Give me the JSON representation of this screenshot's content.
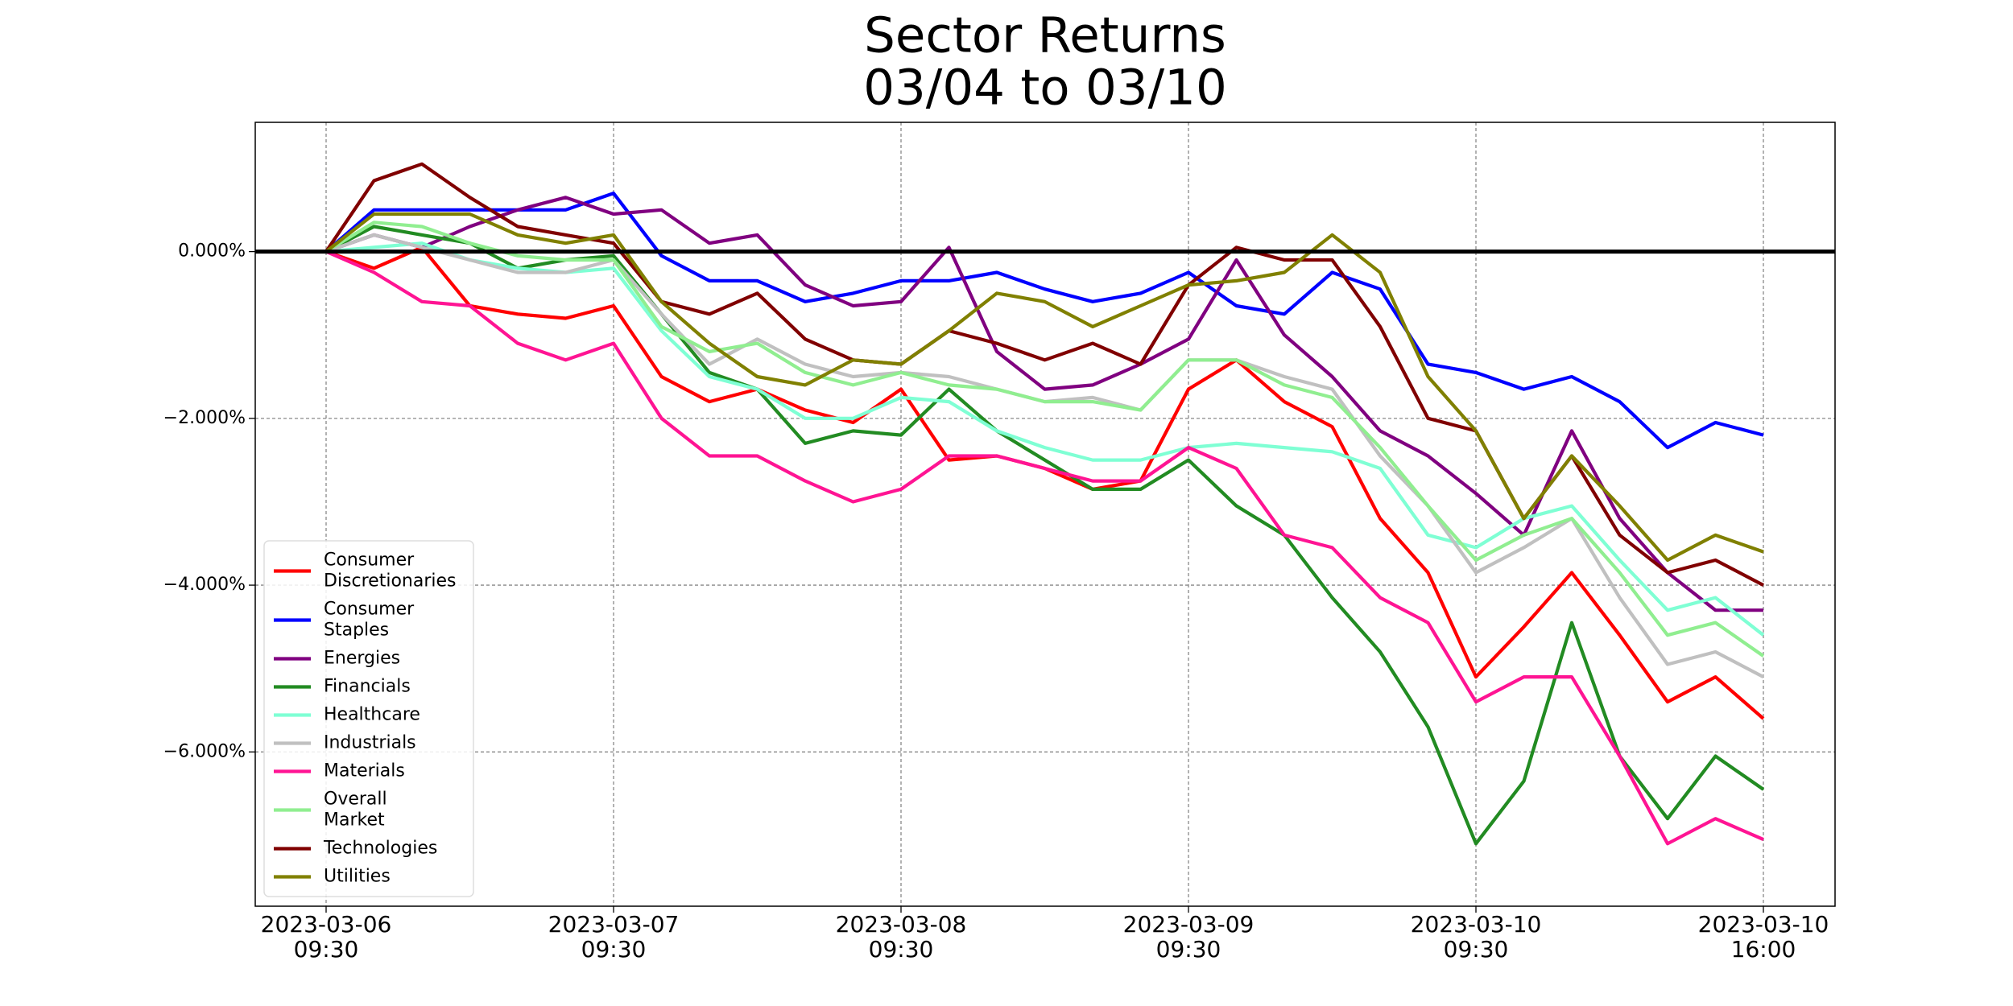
{
  "chart_data": {
    "type": "line",
    "title": "Sector Returns",
    "subtitle": "03/04 to 03/10",
    "x": [
      "2023-03-06 09:30",
      "2023-03-06 10:35",
      "2023-03-06 11:40",
      "2023-03-06 12:45",
      "2023-03-06 13:50",
      "2023-03-06 14:55",
      "2023-03-07 09:30",
      "2023-03-07 10:35",
      "2023-03-07 11:40",
      "2023-03-07 12:45",
      "2023-03-07 13:50",
      "2023-03-07 14:55",
      "2023-03-08 09:30",
      "2023-03-08 10:35",
      "2023-03-08 11:40",
      "2023-03-08 12:45",
      "2023-03-08 13:50",
      "2023-03-08 14:55",
      "2023-03-09 09:30",
      "2023-03-09 10:35",
      "2023-03-09 11:40",
      "2023-03-09 12:45",
      "2023-03-09 13:50",
      "2023-03-09 14:55",
      "2023-03-10 09:30",
      "2023-03-10 10:35",
      "2023-03-10 11:40",
      "2023-03-10 12:45",
      "2023-03-10 13:50",
      "2023-03-10 14:55",
      "2023-03-10 16:00"
    ],
    "xticks": [
      "2023-03-06 09:30",
      "2023-03-07 09:30",
      "2023-03-08 09:30",
      "2023-03-09 09:30",
      "2023-03-10 09:30",
      "2023-03-10 16:00"
    ],
    "ylim": [
      -7.85,
      1.55
    ],
    "yticks": [
      {
        "value": 0,
        "label": "0.000%"
      },
      {
        "value": -2,
        "label": "−2.000%"
      },
      {
        "value": -4,
        "label": "−4.000%"
      },
      {
        "value": -6,
        "label": "−6.000%"
      }
    ],
    "hline": 0,
    "grid": true,
    "legend": "lower left",
    "series": [
      {
        "name": "Consumer Discretionaries",
        "color": "#ff0000",
        "values": [
          0,
          -0.2,
          0.05,
          -0.65,
          -0.75,
          -0.8,
          -0.65,
          -1.5,
          -1.8,
          -1.65,
          -1.9,
          -2.05,
          -1.65,
          -2.5,
          -2.45,
          -2.6,
          -2.85,
          -2.75,
          -1.65,
          -1.3,
          -1.8,
          -2.1,
          -3.2,
          -3.85,
          -5.1,
          -4.5,
          -3.85,
          -4.6,
          -5.4,
          -5.1,
          -5.6
        ]
      },
      {
        "name": "Consumer Staples",
        "color": "#0000ff",
        "values": [
          0,
          0.5,
          0.5,
          0.5,
          0.5,
          0.5,
          0.7,
          -0.05,
          -0.35,
          -0.35,
          -0.6,
          -0.5,
          -0.35,
          -0.35,
          -0.25,
          -0.45,
          -0.6,
          -0.5,
          -0.25,
          -0.65,
          -0.75,
          -0.25,
          -0.45,
          -1.35,
          -1.45,
          -1.65,
          -1.5,
          -1.8,
          -2.35,
          -2.05,
          -2.2
        ]
      },
      {
        "name": "Energies",
        "color": "#800080",
        "values": [
          0,
          0.2,
          0.05,
          0.3,
          0.5,
          0.65,
          0.45,
          0.5,
          0.1,
          0.2,
          -0.4,
          -0.65,
          -0.6,
          0.05,
          -1.2,
          -1.65,
          -1.6,
          -1.35,
          -1.05,
          -0.1,
          -1.0,
          -1.5,
          -2.15,
          -2.45,
          -2.9,
          -3.4,
          -2.15,
          -3.2,
          -3.85,
          -4.3,
          -4.3
        ]
      },
      {
        "name": "Financials",
        "color": "#228b22",
        "values": [
          0,
          0.3,
          0.2,
          0.1,
          -0.2,
          -0.1,
          -0.05,
          -0.75,
          -1.45,
          -1.65,
          -2.3,
          -2.15,
          -2.2,
          -1.65,
          -2.15,
          -2.5,
          -2.85,
          -2.85,
          -2.5,
          -3.05,
          -3.4,
          -4.15,
          -4.8,
          -5.7,
          -7.1,
          -6.35,
          -4.45,
          -6.05,
          -6.8,
          -6.05,
          -6.45
        ]
      },
      {
        "name": "Healthcare",
        "color": "#7fffd4",
        "values": [
          0,
          0.05,
          0.1,
          -0.1,
          -0.2,
          -0.25,
          -0.2,
          -0.95,
          -1.5,
          -1.65,
          -2.0,
          -2.0,
          -1.75,
          -1.8,
          -2.15,
          -2.35,
          -2.5,
          -2.5,
          -2.35,
          -2.3,
          -2.35,
          -2.4,
          -2.6,
          -3.4,
          -3.55,
          -3.2,
          -3.05,
          -3.7,
          -4.3,
          -4.15,
          -4.6
        ]
      },
      {
        "name": "Industrials",
        "color": "#c0c0c0",
        "values": [
          0,
          0.2,
          0.05,
          -0.1,
          -0.25,
          -0.25,
          -0.1,
          -0.75,
          -1.35,
          -1.05,
          -1.35,
          -1.5,
          -1.45,
          -1.5,
          -1.65,
          -1.8,
          -1.75,
          -1.9,
          -1.3,
          -1.3,
          -1.5,
          -1.65,
          -2.45,
          -3.05,
          -3.85,
          -3.55,
          -3.2,
          -4.15,
          -4.95,
          -4.8,
          -5.1
        ]
      },
      {
        "name": "Materials",
        "color": "#ff1493",
        "values": [
          0,
          -0.25,
          -0.6,
          -0.65,
          -1.1,
          -1.3,
          -1.1,
          -2.0,
          -2.45,
          -2.45,
          -2.75,
          -3.0,
          -2.85,
          -2.45,
          -2.45,
          -2.6,
          -2.75,
          -2.75,
          -2.35,
          -2.6,
          -3.4,
          -3.55,
          -4.15,
          -4.45,
          -5.4,
          -5.1,
          -5.1,
          -6.05,
          -7.1,
          -6.8,
          -7.05
        ]
      },
      {
        "name": "Overall Market",
        "color": "#90ee90",
        "values": [
          0,
          0.35,
          0.3,
          0.1,
          -0.05,
          -0.1,
          -0.1,
          -0.9,
          -1.2,
          -1.1,
          -1.45,
          -1.6,
          -1.45,
          -1.6,
          -1.65,
          -1.8,
          -1.8,
          -1.9,
          -1.3,
          -1.3,
          -1.6,
          -1.75,
          -2.35,
          -3.05,
          -3.7,
          -3.4,
          -3.2,
          -3.85,
          -4.6,
          -4.45,
          -4.85
        ]
      },
      {
        "name": "Technologies",
        "color": "#800000",
        "values": [
          0,
          0.85,
          1.05,
          0.65,
          0.3,
          0.2,
          0.1,
          -0.6,
          -0.75,
          -0.5,
          -1.05,
          -1.3,
          -1.35,
          -0.95,
          -1.1,
          -1.3,
          -1.1,
          -1.35,
          -0.4,
          0.05,
          -0.1,
          -0.1,
          -0.9,
          -2.0,
          -2.15,
          -3.2,
          -2.45,
          -3.4,
          -3.85,
          -3.7,
          -4.0
        ]
      },
      {
        "name": "Utilities",
        "color": "#808000",
        "values": [
          0,
          0.45,
          0.45,
          0.45,
          0.2,
          0.1,
          0.2,
          -0.6,
          -1.1,
          -1.5,
          -1.6,
          -1.3,
          -1.35,
          -0.95,
          -0.5,
          -0.6,
          -0.9,
          -0.65,
          -0.4,
          -0.35,
          -0.25,
          0.2,
          -0.25,
          -1.5,
          -2.15,
          -3.2,
          -2.45,
          -3.05,
          -3.7,
          -3.4,
          -3.6
        ]
      }
    ]
  }
}
